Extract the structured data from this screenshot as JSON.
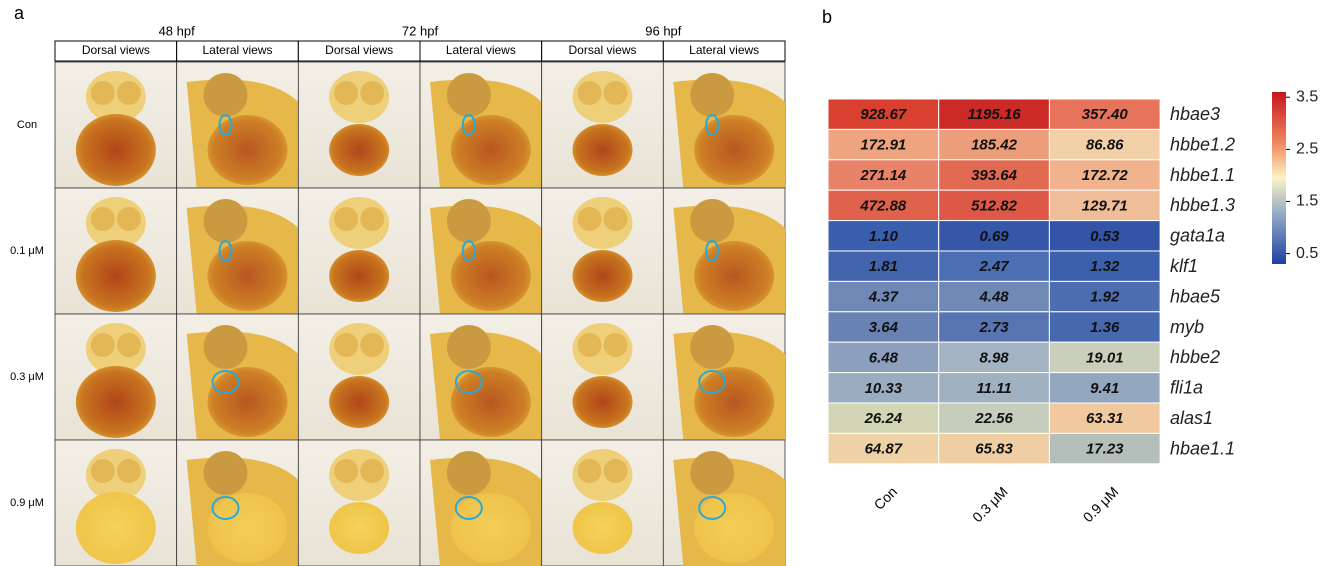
{
  "panel_a": {
    "label": "a",
    "timepoints": [
      "48 hpf",
      "72 hpf",
      "96 hpf"
    ],
    "views": [
      "Dorsal views",
      "Lateral views",
      "Dorsal views",
      "Lateral views",
      "Dorsal views",
      "Lateral views"
    ],
    "rows": [
      "Con",
      "0.1 μM",
      "0.3 μM",
      "0.9 μM"
    ]
  },
  "panel_b": {
    "label": "b",
    "columns": [
      "Con",
      "0.3 μM",
      "0.9 μM"
    ],
    "rows": [
      {
        "gene": "hbae3",
        "values": [
          "928.67",
          "1195.16",
          "357.40"
        ],
        "colors": [
          "#d9402f",
          "#cc2a26",
          "#e6735a"
        ]
      },
      {
        "gene": "hbbe1.2",
        "values": [
          "172.91",
          "185.42",
          "86.86"
        ],
        "colors": [
          "#eea57f",
          "#ec9e7a",
          "#f2d1a8"
        ]
      },
      {
        "gene": "hbbe1.1",
        "values": [
          "271.14",
          "393.64",
          "172.72"
        ],
        "colors": [
          "#e8836a",
          "#e06a52",
          "#f0b38d"
        ]
      },
      {
        "gene": "hbbe1.3",
        "values": [
          "472.88",
          "512.82",
          "129.71"
        ],
        "colors": [
          "#e0624c",
          "#dd5846",
          "#efbd97"
        ]
      },
      {
        "gene": "gata1a",
        "values": [
          "1.10",
          "0.69",
          "0.53"
        ],
        "colors": [
          "#3a5fad",
          "#3656a8",
          "#3354a7"
        ]
      },
      {
        "gene": "klf1",
        "values": [
          "1.81",
          "2.47",
          "1.32"
        ],
        "colors": [
          "#4264ad",
          "#4b6fb2",
          "#3d60ac"
        ]
      },
      {
        "gene": "hbae5",
        "values": [
          "4.37",
          "4.48",
          "1.92"
        ],
        "colors": [
          "#7088b5",
          "#7089b5",
          "#4c6db0"
        ]
      },
      {
        "gene": "myb",
        "values": [
          "3.64",
          "2.73",
          "1.36"
        ],
        "colors": [
          "#6982b4",
          "#5875b1",
          "#4668ae"
        ]
      },
      {
        "gene": "hbbe2",
        "values": [
          "6.48",
          "8.98",
          "19.01"
        ],
        "colors": [
          "#8c9fbd",
          "#a3b3c1",
          "#c9cfbb"
        ]
      },
      {
        "gene": "fli1a",
        "values": [
          "10.33",
          "11.11",
          "9.41"
        ],
        "colors": [
          "#9aadc0",
          "#a0b1c1",
          "#93a7bf"
        ]
      },
      {
        "gene": "alas1",
        "values": [
          "26.24",
          "22.56",
          "63.31"
        ],
        "colors": [
          "#d2d6b5",
          "#c5cdbc",
          "#f0c99f"
        ]
      },
      {
        "gene": "hbae1.1",
        "values": [
          "64.87",
          "65.83",
          "17.23"
        ],
        "colors": [
          "#efd1a6",
          "#efcea4",
          "#b4bfbb"
        ]
      }
    ],
    "colorbar": {
      "lim": [
        0.3,
        3.6
      ],
      "ticks": [
        3.5,
        2.5,
        1.5,
        0.5
      ]
    }
  }
}
